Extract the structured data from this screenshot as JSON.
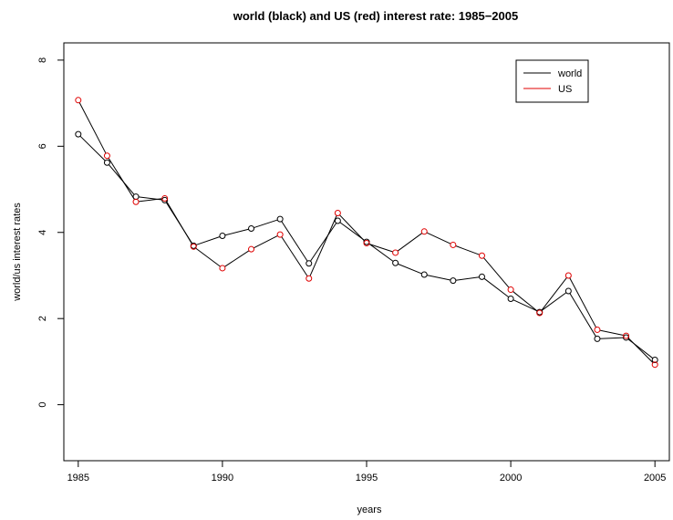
{
  "chart_data": {
    "type": "line",
    "title": "world (black) and US (red) interest rate: 1985−2005",
    "xlabel": "years",
    "ylabel": "world/us interest rates",
    "x": [
      1985,
      1986,
      1987,
      1988,
      1989,
      1990,
      1991,
      1992,
      1993,
      1994,
      1995,
      1996,
      1997,
      1998,
      1999,
      2000,
      2001,
      2002,
      2003,
      2004,
      2005
    ],
    "xlim": [
      1984.5,
      2005.5
    ],
    "ylim": [
      -1.3,
      8.4
    ],
    "x_ticks": [
      "1985",
      "1990",
      "1995",
      "2000",
      "2005"
    ],
    "y_ticks": [
      "0",
      "2",
      "4",
      "6",
      "8"
    ],
    "grid": false,
    "legend_position": "top-right",
    "series": [
      {
        "name": "world",
        "color": "#000000",
        "point_color": "#000000",
        "values": [
          6.28,
          5.62,
          4.83,
          4.75,
          3.69,
          3.92,
          4.09,
          4.31,
          3.28,
          4.27,
          3.78,
          3.29,
          3.02,
          2.88,
          2.97,
          2.46,
          2.15,
          2.64,
          1.53,
          1.56,
          1.04
        ]
      },
      {
        "name": "US",
        "color": "#000000",
        "point_color": "#e00000",
        "legend_color": "#e00000",
        "values": [
          7.07,
          5.78,
          4.71,
          4.79,
          3.67,
          3.17,
          3.61,
          3.95,
          2.93,
          4.45,
          3.75,
          3.53,
          4.02,
          3.71,
          3.46,
          2.67,
          2.13,
          3.0,
          1.74,
          1.6,
          0.93
        ]
      }
    ]
  }
}
